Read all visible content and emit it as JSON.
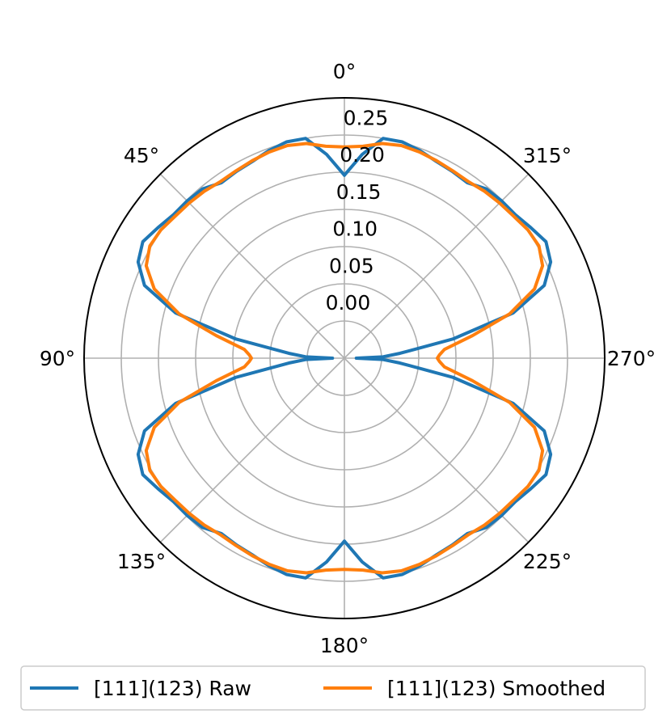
{
  "chart_data": {
    "type": "polar-line",
    "title": "",
    "theta_zero_location": "top",
    "theta_direction": "counterclockwise",
    "theta_ticks": [
      0,
      45,
      90,
      135,
      180,
      225,
      270,
      315
    ],
    "theta_tick_labels": [
      "0°",
      "45°",
      "90°",
      "135°",
      "180°",
      "225°",
      "270°",
      "315°"
    ],
    "r_range": [
      -0.05,
      0.3
    ],
    "r_ticks": [
      0.0,
      0.05,
      0.1,
      0.15,
      0.2,
      0.25
    ],
    "r_tick_labels": [
      "0.00",
      "0.05",
      "0.10",
      "0.15",
      "0.20",
      "0.25"
    ],
    "grid": true,
    "legend_position": "bottom",
    "series": [
      {
        "name": "[111](123) Raw",
        "color": "#1f77b4",
        "theta_deg": [
          0,
          5,
          10,
          15,
          20,
          25,
          30,
          35,
          40,
          45,
          50,
          55,
          60,
          65,
          70,
          75,
          80,
          85,
          88,
          90
        ],
        "r": [
          0.196,
          0.225,
          0.25,
          0.251,
          0.247,
          0.242,
          0.24,
          0.238,
          0.247,
          0.249,
          0.25,
          0.256,
          0.263,
          0.256,
          0.236,
          0.185,
          0.098,
          0.025,
          0.002,
          -0.034
        ]
      },
      {
        "name": "[111](123) Smoothed",
        "color": "#ff7f0e",
        "theta_deg": [
          0,
          5,
          10,
          15,
          20,
          25,
          30,
          35,
          40,
          45,
          50,
          55,
          60,
          65,
          70,
          75,
          80,
          85,
          88,
          90
        ],
        "r": [
          0.234,
          0.236,
          0.243,
          0.246,
          0.245,
          0.243,
          0.241,
          0.24,
          0.243,
          0.245,
          0.247,
          0.251,
          0.252,
          0.244,
          0.222,
          0.18,
          0.125,
          0.085,
          0.078,
          0.075
        ]
      }
    ]
  }
}
